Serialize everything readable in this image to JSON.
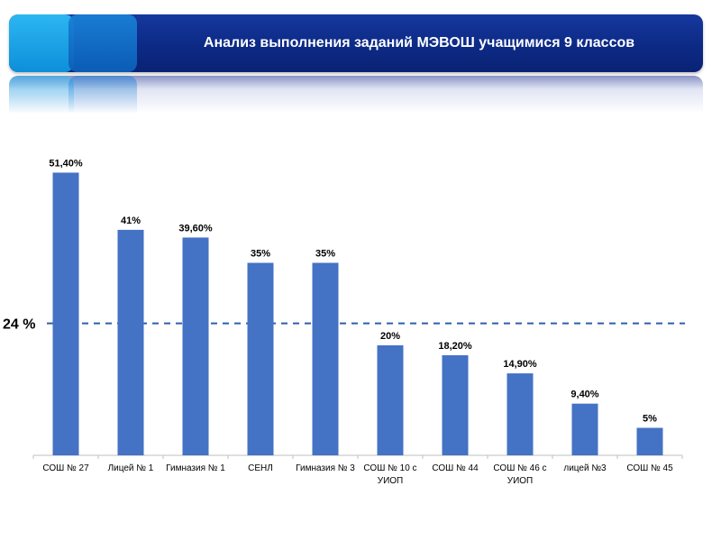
{
  "header": {
    "title": "Анализ выполнения заданий МЭВОШ учащимися 9 классов"
  },
  "colors": {
    "bar": "#4472c4",
    "reference_line": "#2e5fa8",
    "banner": "#0c2a85"
  },
  "chart_data": {
    "type": "bar",
    "title": "Анализ выполнения заданий МЭВОШ учащимися 9 классов",
    "categories": [
      [
        "СОШ № 27"
      ],
      [
        "Лицей № 1"
      ],
      [
        "Гимназия № 1"
      ],
      [
        "СЕНЛ"
      ],
      [
        "Гимназия № 3"
      ],
      [
        "СОШ № 10 с",
        "УИОП"
      ],
      [
        "СОШ № 44"
      ],
      [
        "СОШ № 46 с",
        "УИОП"
      ],
      [
        "лицей №3"
      ],
      [
        "СОШ № 45"
      ]
    ],
    "values": [
      51.4,
      41,
      39.6,
      35,
      35,
      20,
      18.2,
      14.9,
      9.4,
      5
    ],
    "data_labels": [
      "51,40%",
      "41%",
      "39,60%",
      "35%",
      "35%",
      "20%",
      "18,20%",
      "14,90%",
      "9,40%",
      "5%"
    ],
    "reference_line": {
      "value": 24,
      "label": "24 %"
    },
    "ylim": [
      0,
      55
    ],
    "xlabel": "",
    "ylabel": "",
    "grid": false,
    "legend": "none"
  }
}
